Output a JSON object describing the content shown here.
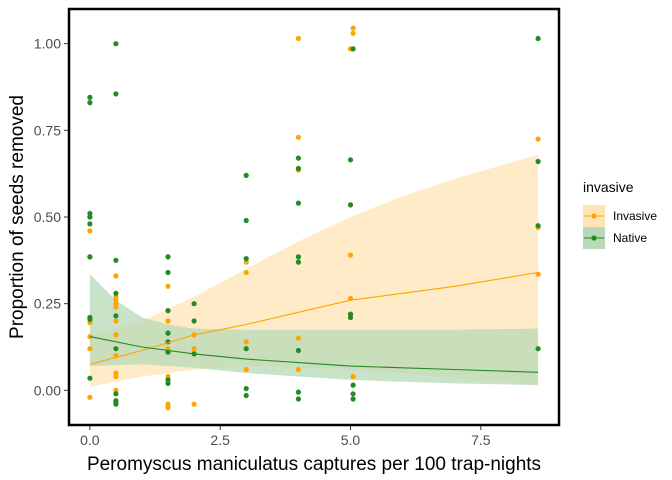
{
  "chart_data": {
    "type": "scatter",
    "xlabel": "Peromyscus maniculatus captures per 100 trap-nights",
    "ylabel": "Proportion of seeds removed",
    "xlim": [
      -0.4,
      9.0
    ],
    "ylim": [
      -0.1,
      1.1
    ],
    "x_ticks": [
      0.0,
      2.5,
      5.0,
      7.5
    ],
    "x_tick_labels": [
      "0.0",
      "2.5",
      "5.0",
      "7.5"
    ],
    "y_ticks": [
      0.0,
      0.25,
      0.5,
      0.75,
      1.0
    ],
    "y_tick_labels": [
      "0.00",
      "0.25",
      "0.50",
      "0.75",
      "1.00"
    ],
    "grid": false,
    "legend": {
      "title": "invasive",
      "placement": "right",
      "entries": [
        {
          "label": "Invasive",
          "color": "#FFA500",
          "fill": "#FFE4B5"
        },
        {
          "label": "Native",
          "color": "#228B22",
          "fill": "#B7D9B7"
        }
      ]
    },
    "series": [
      {
        "name": "Invasive",
        "color": "#FFA500",
        "points": [
          [
            0.0,
            0.46
          ],
          [
            0.0,
            0.385
          ],
          [
            0.0,
            0.195
          ],
          [
            0.0,
            0.155
          ],
          [
            0.0,
            0.12
          ],
          [
            0.0,
            -0.02
          ],
          [
            0.5,
            0.33
          ],
          [
            0.5,
            0.27
          ],
          [
            0.5,
            0.26
          ],
          [
            0.5,
            0.25
          ],
          [
            0.5,
            0.24
          ],
          [
            0.5,
            0.2
          ],
          [
            0.5,
            0.16
          ],
          [
            0.5,
            0.1
          ],
          [
            0.5,
            0.05
          ],
          [
            0.5,
            0.04
          ],
          [
            0.5,
            0.0
          ],
          [
            1.5,
            0.3
          ],
          [
            1.5,
            0.2
          ],
          [
            1.5,
            0.12
          ],
          [
            1.5,
            0.04
          ],
          [
            1.5,
            -0.04
          ],
          [
            1.5,
            -0.05
          ],
          [
            2.0,
            0.16
          ],
          [
            2.0,
            0.12
          ],
          [
            2.0,
            -0.04
          ],
          [
            3.0,
            0.37
          ],
          [
            3.0,
            0.34
          ],
          [
            3.0,
            0.14
          ],
          [
            3.0,
            0.06
          ],
          [
            4.0,
            1.015
          ],
          [
            4.0,
            0.73
          ],
          [
            4.0,
            0.635
          ],
          [
            4.0,
            0.15
          ],
          [
            4.0,
            0.06
          ],
          [
            5.05,
            1.045
          ],
          [
            5.05,
            1.03
          ],
          [
            5.0,
            0.985
          ],
          [
            5.0,
            0.535
          ],
          [
            5.0,
            0.39
          ],
          [
            5.0,
            0.265
          ],
          [
            5.05,
            0.04
          ],
          [
            8.6,
            0.725
          ],
          [
            8.6,
            0.47
          ],
          [
            8.6,
            0.335
          ]
        ],
        "trend": [
          [
            0.0,
            0.075
          ],
          [
            1.0,
            0.115
          ],
          [
            2.0,
            0.16
          ],
          [
            3.0,
            0.19
          ],
          [
            4.0,
            0.225
          ],
          [
            5.0,
            0.26
          ],
          [
            6.0,
            0.28
          ],
          [
            7.0,
            0.3
          ],
          [
            8.6,
            0.34
          ]
        ],
        "ci_upper": [
          [
            0.0,
            0.16
          ],
          [
            1.0,
            0.2
          ],
          [
            2.0,
            0.27
          ],
          [
            3.0,
            0.35
          ],
          [
            4.0,
            0.43
          ],
          [
            5.0,
            0.5
          ],
          [
            6.0,
            0.56
          ],
          [
            7.0,
            0.61
          ],
          [
            8.6,
            0.68
          ]
        ],
        "ci_lower": [
          [
            0.0,
            0.01
          ],
          [
            1.0,
            0.04
          ],
          [
            2.0,
            0.06
          ],
          [
            3.0,
            0.07
          ],
          [
            4.0,
            0.065
          ],
          [
            5.0,
            0.06
          ],
          [
            6.0,
            0.05
          ],
          [
            7.0,
            0.035
          ],
          [
            8.6,
            0.015
          ]
        ]
      },
      {
        "name": "Native",
        "color": "#228B22",
        "points": [
          [
            0.0,
            0.845
          ],
          [
            0.0,
            0.83
          ],
          [
            0.0,
            0.51
          ],
          [
            0.0,
            0.5
          ],
          [
            0.0,
            0.48
          ],
          [
            0.0,
            0.385
          ],
          [
            0.0,
            0.21
          ],
          [
            0.0,
            0.205
          ],
          [
            0.0,
            0.035
          ],
          [
            0.5,
            1.0
          ],
          [
            0.5,
            0.855
          ],
          [
            0.5,
            0.375
          ],
          [
            0.5,
            0.28
          ],
          [
            0.5,
            0.215
          ],
          [
            0.5,
            0.12
          ],
          [
            0.5,
            -0.01
          ],
          [
            0.5,
            -0.03
          ],
          [
            0.5,
            -0.04
          ],
          [
            0.5,
            -0.035
          ],
          [
            1.5,
            0.385
          ],
          [
            1.5,
            0.34
          ],
          [
            1.5,
            0.23
          ],
          [
            1.5,
            0.165
          ],
          [
            1.5,
            0.14
          ],
          [
            1.5,
            0.11
          ],
          [
            1.5,
            0.03
          ],
          [
            1.5,
            0.02
          ],
          [
            2.0,
            0.25
          ],
          [
            2.0,
            0.2
          ],
          [
            2.0,
            0.105
          ],
          [
            3.0,
            0.62
          ],
          [
            3.0,
            0.49
          ],
          [
            3.0,
            0.38
          ],
          [
            3.0,
            0.12
          ],
          [
            3.0,
            0.005
          ],
          [
            3.0,
            -0.015
          ],
          [
            4.0,
            0.67
          ],
          [
            4.0,
            0.64
          ],
          [
            4.0,
            0.54
          ],
          [
            4.0,
            0.385
          ],
          [
            4.0,
            0.37
          ],
          [
            4.0,
            0.115
          ],
          [
            4.0,
            -0.005
          ],
          [
            4.0,
            -0.025
          ],
          [
            5.05,
            0.985
          ],
          [
            5.0,
            0.665
          ],
          [
            5.0,
            0.535
          ],
          [
            5.0,
            0.22
          ],
          [
            5.0,
            0.21
          ],
          [
            5.05,
            0.015
          ],
          [
            5.05,
            -0.01
          ],
          [
            5.05,
            -0.025
          ],
          [
            8.6,
            1.015
          ],
          [
            8.6,
            0.66
          ],
          [
            8.6,
            0.475
          ],
          [
            8.6,
            0.12
          ]
        ],
        "trend": [
          [
            0.0,
            0.155
          ],
          [
            1.0,
            0.125
          ],
          [
            2.0,
            0.105
          ],
          [
            3.0,
            0.09
          ],
          [
            4.0,
            0.08
          ],
          [
            5.0,
            0.07
          ],
          [
            6.0,
            0.065
          ],
          [
            7.0,
            0.06
          ],
          [
            8.6,
            0.052
          ]
        ],
        "ci_upper": [
          [
            0.0,
            0.335
          ],
          [
            0.5,
            0.26
          ],
          [
            1.0,
            0.21
          ],
          [
            1.5,
            0.19
          ],
          [
            2.0,
            0.178
          ],
          [
            3.0,
            0.175
          ],
          [
            4.0,
            0.175
          ],
          [
            5.0,
            0.175
          ],
          [
            6.0,
            0.175
          ],
          [
            7.0,
            0.175
          ],
          [
            8.6,
            0.178
          ]
        ],
        "ci_lower": [
          [
            0.0,
            0.07
          ],
          [
            1.0,
            0.075
          ],
          [
            2.0,
            0.065
          ],
          [
            3.0,
            0.05
          ],
          [
            4.0,
            0.04
          ],
          [
            5.0,
            0.03
          ],
          [
            6.0,
            0.025
          ],
          [
            7.0,
            0.02
          ],
          [
            8.6,
            0.015
          ]
        ]
      }
    ]
  }
}
